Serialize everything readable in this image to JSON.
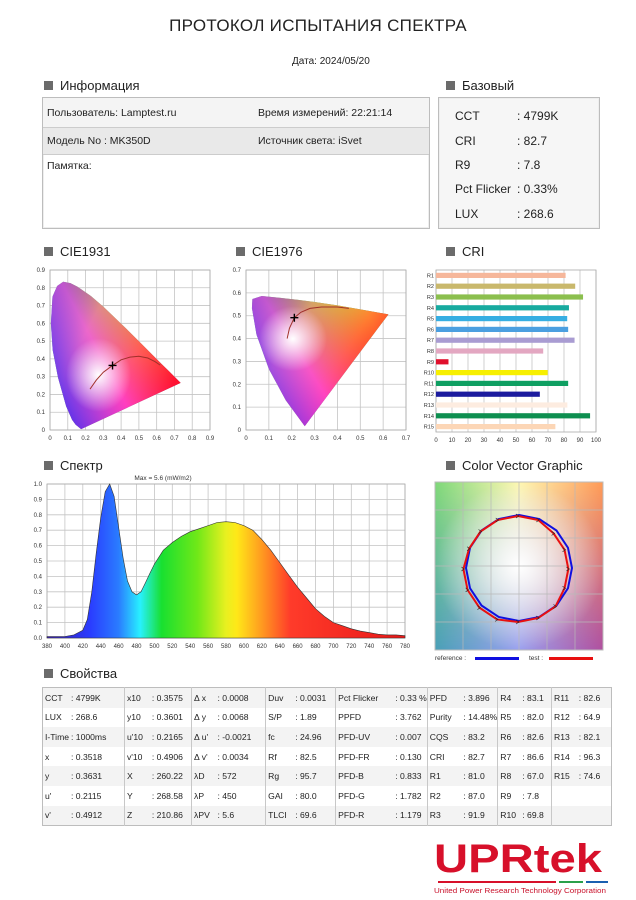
{
  "title": "ПРОТОКОЛ ИСПЫТАНИЯ СПЕКТРА",
  "date": "Дата: 2024/05/20",
  "info": {
    "heading": "Информация",
    "user": "Пользователь: Lamptest.ru",
    "time": "Время измерений: 22:21:14",
    "model": "Модель No : MK350D",
    "source": "Источник света: iSvet",
    "memo": "Памятка:"
  },
  "basic": {
    "heading": "Базовый",
    "items": [
      {
        "label": "CCT",
        "value": ": 4799K"
      },
      {
        "label": "CRI",
        "value": ": 82.7"
      },
      {
        "label": "R9",
        "value": ": 7.8"
      },
      {
        "label": "Pct Flicker",
        "value": ": 0.33%"
      },
      {
        "label": "LUX",
        "value": ": 268.6"
      }
    ]
  },
  "sections": {
    "cie1931": "CIE1931",
    "cie1976": "CIE1976",
    "cri": "CRI",
    "spectrum": "Спектр",
    "vector": "Color Vector Graphic",
    "props": "Свойства"
  },
  "chart_data": [
    {
      "type": "scatter",
      "id": "cie1931",
      "title": "CIE1931",
      "xlim": [
        0,
        0.9
      ],
      "ylim": [
        0,
        0.9
      ],
      "xticks": [
        "0",
        "0.1",
        "0.2",
        "0.3",
        "0.4",
        "0.5",
        "0.6",
        "0.7",
        "0.8",
        "0.9"
      ],
      "yticks": [
        "0",
        "0.1",
        "0.2",
        "0.3",
        "0.4",
        "0.5",
        "0.6",
        "0.7",
        "0.8",
        "0.9"
      ],
      "grid": true,
      "point": {
        "x": 0.3518,
        "y": 0.3631
      }
    },
    {
      "type": "scatter",
      "id": "cie1976",
      "title": "CIE1976",
      "xlim": [
        0,
        0.7
      ],
      "ylim": [
        0,
        0.7
      ],
      "xticks": [
        "0",
        "0.1",
        "0.2",
        "0.3",
        "0.4",
        "0.5",
        "0.6",
        "0.7"
      ],
      "yticks": [
        "0",
        "0.1",
        "0.2",
        "0.3",
        "0.4",
        "0.5",
        "0.6",
        "0.7"
      ],
      "grid": true,
      "point": {
        "x": 0.2115,
        "y": 0.4912
      }
    },
    {
      "type": "bar",
      "id": "cri",
      "title": "CRI",
      "orientation": "horizontal",
      "categories": [
        "R1",
        "R2",
        "R3",
        "R4",
        "R5",
        "R6",
        "R7",
        "R8",
        "R9",
        "R10",
        "R11",
        "R12",
        "R13",
        "R14",
        "R15"
      ],
      "values": [
        81.0,
        87.0,
        91.9,
        83.1,
        82.0,
        82.6,
        86.6,
        67.0,
        7.8,
        69.8,
        82.6,
        64.9,
        82.1,
        96.3,
        74.6
      ],
      "colors": [
        "#f6b79b",
        "#c9b86c",
        "#8bbf4e",
        "#17aa9f",
        "#36aee2",
        "#4b9fe0",
        "#a99cd2",
        "#e3a7c1",
        "#e0102c",
        "#f7ef00",
        "#0f9f62",
        "#1c1b9e",
        "#fdece0",
        "#0e8f50",
        "#fcd6b6"
      ],
      "xlim": [
        0,
        100
      ],
      "xticks": [
        "0",
        "10",
        "20",
        "30",
        "40",
        "50",
        "60",
        "70",
        "80",
        "90",
        "100"
      ],
      "grid": true
    },
    {
      "type": "area",
      "id": "spectrum",
      "title": "Спектр",
      "annotation": "Max = 5.6 (mW/m2)",
      "xlim": [
        380,
        780
      ],
      "ylim": [
        0,
        1.0
      ],
      "xticks": [
        "380",
        "400",
        "420",
        "440",
        "460",
        "480",
        "500",
        "520",
        "540",
        "560",
        "580",
        "600",
        "620",
        "640",
        "660",
        "680",
        "700",
        "720",
        "740",
        "760",
        "780"
      ],
      "yticks": [
        "0.0",
        "0.1",
        "0.2",
        "0.3",
        "0.4",
        "0.5",
        "0.6",
        "0.7",
        "0.8",
        "0.9",
        "1.0"
      ],
      "grid": true,
      "x": [
        380,
        390,
        400,
        410,
        420,
        425,
        430,
        435,
        440,
        445,
        450,
        455,
        460,
        465,
        470,
        475,
        480,
        485,
        490,
        495,
        500,
        510,
        520,
        530,
        540,
        550,
        560,
        570,
        580,
        590,
        600,
        610,
        620,
        630,
        640,
        650,
        660,
        670,
        680,
        690,
        700,
        710,
        720,
        730,
        740,
        750,
        760,
        770,
        780
      ],
      "y": [
        0.01,
        0.01,
        0.01,
        0.02,
        0.05,
        0.12,
        0.3,
        0.55,
        0.78,
        0.95,
        1.0,
        0.92,
        0.72,
        0.52,
        0.37,
        0.3,
        0.28,
        0.3,
        0.36,
        0.42,
        0.48,
        0.57,
        0.62,
        0.66,
        0.69,
        0.71,
        0.73,
        0.75,
        0.755,
        0.75,
        0.73,
        0.7,
        0.64,
        0.57,
        0.49,
        0.41,
        0.33,
        0.26,
        0.19,
        0.14,
        0.1,
        0.08,
        0.06,
        0.045,
        0.035,
        0.025,
        0.02,
        0.02,
        0.015
      ]
    },
    {
      "type": "line",
      "id": "color-vector",
      "title": "Color Vector Graphic",
      "legend": [
        {
          "label": "reference :",
          "color": "#1010e0"
        },
        {
          "label": "test :",
          "color": "#e81010"
        }
      ],
      "legend_position": "bottom",
      "grid": true
    }
  ],
  "props": {
    "rows": [
      [
        [
          "CCT",
          ": 4799K"
        ],
        [
          "x10",
          ": 0.3575"
        ],
        [
          "Δ x",
          ": 0.0008"
        ],
        [
          "Duv",
          ": 0.0031"
        ],
        [
          "Pct Flicker",
          ": 0.33 %"
        ],
        [
          "PFD",
          ": 3.896"
        ],
        [
          "R4",
          ": 83.1"
        ],
        [
          "R11",
          ": 82.6"
        ]
      ],
      [
        [
          "LUX",
          ": 268.6"
        ],
        [
          "y10",
          ": 0.3601"
        ],
        [
          "Δ y",
          ": 0.0068"
        ],
        [
          "S/P",
          ": 1.89"
        ],
        [
          "PPFD",
          ": 3.762"
        ],
        [
          "Purity",
          ": 14.48%"
        ],
        [
          "R5",
          ": 82.0"
        ],
        [
          "R12",
          ": 64.9"
        ]
      ],
      [
        [
          "I-Time",
          ": 1000ms"
        ],
        [
          "u'10",
          ": 0.2165"
        ],
        [
          "Δ u'",
          ": -0.0021"
        ],
        [
          "fc",
          ": 24.96"
        ],
        [
          "PFD-UV",
          ": 0.007"
        ],
        [
          "CQS",
          ": 83.2"
        ],
        [
          "R6",
          ": 82.6"
        ],
        [
          "R13",
          ": 82.1"
        ]
      ],
      [
        [
          "x",
          ": 0.3518"
        ],
        [
          "v'10",
          ": 0.4906"
        ],
        [
          "Δ v'",
          ": 0.0034"
        ],
        [
          "Rf",
          ": 82.5"
        ],
        [
          "PFD-FR",
          ": 0.130"
        ],
        [
          "CRI",
          ": 82.7"
        ],
        [
          "R7",
          ": 86.6"
        ],
        [
          "R14",
          ": 96.3"
        ]
      ],
      [
        [
          "y",
          ": 0.3631"
        ],
        [
          "X",
          ": 260.22"
        ],
        [
          "λD",
          ": 572"
        ],
        [
          "Rg",
          ": 95.7"
        ],
        [
          "PFD-B",
          ": 0.833"
        ],
        [
          "R1",
          ": 81.0"
        ],
        [
          "R8",
          ": 67.0"
        ],
        [
          "R15",
          ": 74.6"
        ]
      ],
      [
        [
          "u'",
          ": 0.2115"
        ],
        [
          "Y",
          ": 268.58"
        ],
        [
          "λP",
          ": 450"
        ],
        [
          "GAI",
          ": 80.0"
        ],
        [
          "PFD-G",
          ": 1.782"
        ],
        [
          "R2",
          ": 87.0"
        ],
        [
          "R9",
          ": 7.8"
        ],
        [
          "",
          ""
        ]
      ],
      [
        [
          "v'",
          ": 0.4912"
        ],
        [
          "Z",
          ": 210.86"
        ],
        [
          "λPV",
          ": 5.6"
        ],
        [
          "TLCI",
          ": 69.6"
        ],
        [
          "PFD-R",
          ": 1.179"
        ],
        [
          "R3",
          ": 91.9"
        ],
        [
          "R10",
          ": 69.8"
        ],
        [
          "",
          ""
        ]
      ]
    ]
  },
  "logo": {
    "name": "UPRtek",
    "tagline": "United Power Research Technology Corporation",
    "color": "#d7102a"
  }
}
